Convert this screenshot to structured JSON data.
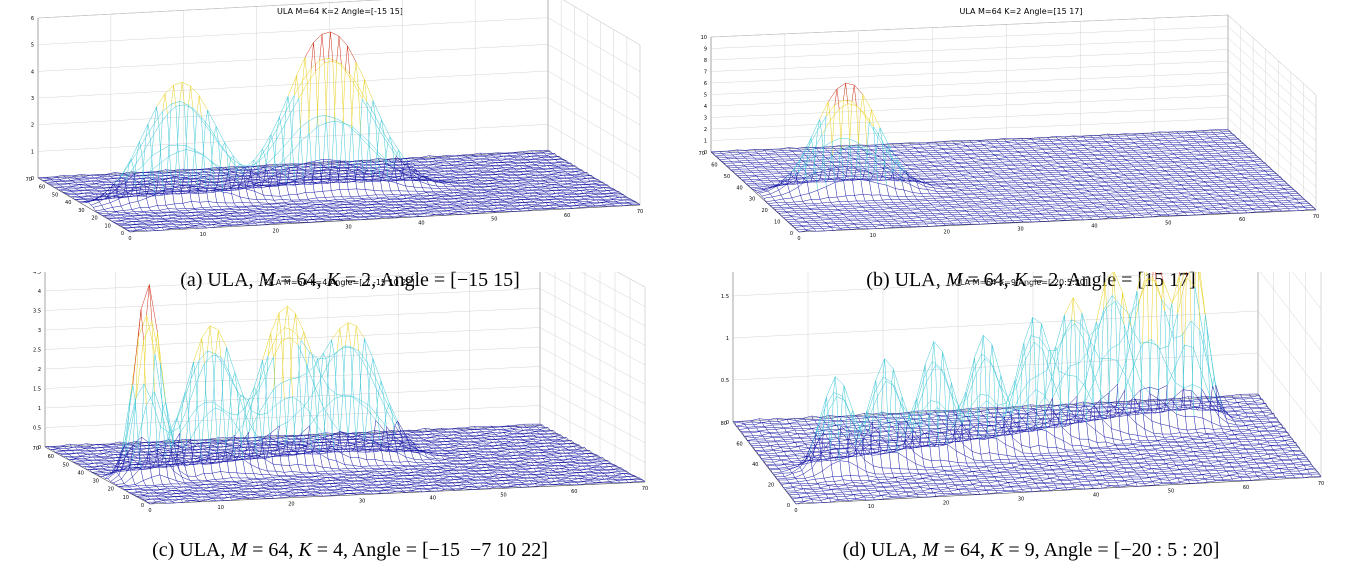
{
  "panels": [
    {
      "title": "ULA M=64 K=2 Angle=[-15 15]",
      "caption": {
        "prefix": "(a) ULA, ",
        "m": "M",
        "m_val": " = 64, ",
        "k": "K",
        "k_val": " = 2, Angle = [−15 15]"
      },
      "zticks": [
        "0",
        "1",
        "2",
        "3",
        "4",
        "5",
        "6"
      ],
      "xticks": [
        "0",
        "10",
        "20",
        "30",
        "40",
        "50",
        "60",
        "70"
      ],
      "yticks": [
        "0",
        "10",
        "20",
        "30",
        "40",
        "50",
        "60",
        "70"
      ]
    },
    {
      "title": "ULA M=64 K=2 Angle=[15 17]",
      "caption": {
        "prefix": "(b) ULA, ",
        "m": "M",
        "m_val": " = 64, ",
        "k": "K",
        "k_val": " = 2, Angle = [15 17]"
      },
      "zticks": [
        "0",
        "1",
        "2",
        "3",
        "4",
        "5",
        "6",
        "7",
        "8",
        "9",
        "10"
      ],
      "xticks": [
        "0",
        "10",
        "20",
        "30",
        "40",
        "50",
        "60",
        "70"
      ],
      "yticks": [
        "0",
        "10",
        "20",
        "30",
        "40",
        "50",
        "60",
        "70"
      ]
    },
    {
      "title": "ULA M=64 K=4 Angle=[-7 -15 10 22]",
      "caption": {
        "prefix": "(c) ULA, ",
        "m": "M",
        "m_val": " = 64, ",
        "k": "K",
        "k_val": " = 4, Angle = [−15  −7 10 22]"
      },
      "zticks": [
        "0",
        "0.5",
        "1",
        "1.5",
        "2",
        "2.5",
        "3",
        "3.5",
        "4",
        "4.5",
        "5"
      ],
      "xticks": [
        "0",
        "10",
        "20",
        "30",
        "40",
        "50",
        "60",
        "70"
      ],
      "yticks": [
        "0",
        "10",
        "20",
        "30",
        "40",
        "50",
        "60",
        "70"
      ]
    },
    {
      "title": "ULA M=64 K=9 Angle=[-20:5:20]",
      "caption": {
        "prefix": "(d) ULA, ",
        "m": "M",
        "m_val": " = 64, ",
        "k": "K",
        "k_val": " = 9, Angle = [−20 : 5 : 20]"
      },
      "zticks": [
        "0",
        "0.5",
        "1",
        "1.5",
        "2",
        "2.5"
      ],
      "xticks": [
        "0",
        "10",
        "20",
        "30",
        "40",
        "50",
        "60",
        "70"
      ],
      "yticks": [
        "0",
        "20",
        "40",
        "60",
        "80"
      ]
    }
  ],
  "colors": {
    "mesh": "#1a1aa8",
    "peak": "#40c8d8",
    "peak_high": "#e8d020",
    "peak_top": "#d03018",
    "grid": "#c8c8c8"
  }
}
